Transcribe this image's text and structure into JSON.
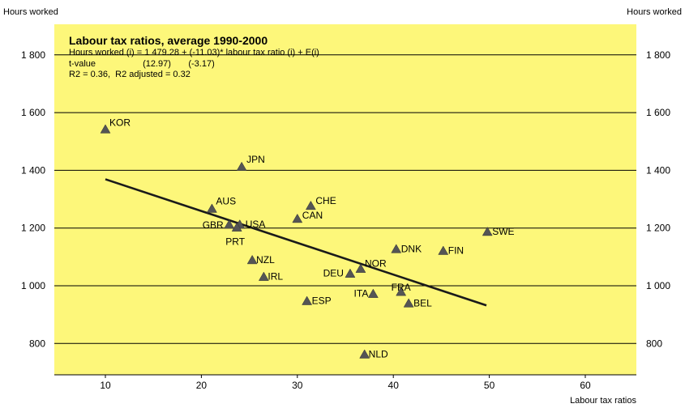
{
  "chart_data": {
    "type": "scatter",
    "title": "Labour tax ratios, average 1990-2000",
    "stats": [
      "Hours worked (i) = 1 479.28 + (-11.03)* labour tax ratio (i) + E(i)",
      "t-value                   (12.97)       (-3.17)",
      "R2 = 0.36,  R2 adjusted = 0.32"
    ],
    "ylabel_left": "Hours worked",
    "ylabel_right": "Hours worked",
    "xlabel": "Labour tax ratios",
    "xlim": [
      4.5,
      65
    ],
    "ylim": [
      700,
      1950
    ],
    "xticks": [
      10,
      20,
      30,
      40,
      50,
      60
    ],
    "yticks": [
      800,
      1000,
      1200,
      1400,
      1600,
      1800
    ],
    "ytick_labels": [
      "800",
      "1 000",
      "1 200",
      "1 400",
      "1 600",
      "1 800"
    ],
    "points": [
      {
        "label": "KOR",
        "x": 10.0,
        "y": 1543
      },
      {
        "label": "JPN",
        "x": 24.2,
        "y": 1413
      },
      {
        "label": "AUS",
        "x": 21.1,
        "y": 1268
      },
      {
        "label": "CHE",
        "x": 31.4,
        "y": 1278
      },
      {
        "label": "CAN",
        "x": 30.0,
        "y": 1233
      },
      {
        "label": "GBR",
        "x": 22.9,
        "y": 1213
      },
      {
        "label": "USA",
        "x": 24.0,
        "y": 1213
      },
      {
        "label": "PRT",
        "x": 23.7,
        "y": 1203
      },
      {
        "label": "DNK",
        "x": 40.3,
        "y": 1128
      },
      {
        "label": "FIN",
        "x": 45.2,
        "y": 1122
      },
      {
        "label": "SWE",
        "x": 49.8,
        "y": 1188
      },
      {
        "label": "NZL",
        "x": 25.3,
        "y": 1090
      },
      {
        "label": "IRL",
        "x": 26.5,
        "y": 1032
      },
      {
        "label": "NOR",
        "x": 36.6,
        "y": 1060
      },
      {
        "label": "DEU",
        "x": 35.5,
        "y": 1043
      },
      {
        "label": "FRA",
        "x": 40.8,
        "y": 980
      },
      {
        "label": "ITA",
        "x": 37.9,
        "y": 973
      },
      {
        "label": "BEL",
        "x": 41.6,
        "y": 940
      },
      {
        "label": "ESP",
        "x": 31.0,
        "y": 948
      },
      {
        "label": "NLD",
        "x": 37.0,
        "y": 763
      }
    ],
    "fit_line": {
      "x": [
        10,
        49.7
      ],
      "y": [
        1369,
        932
      ]
    },
    "colors": {
      "plot_bg": "#fdf77a",
      "marker": "#555555",
      "line": "#1a1a1a"
    },
    "grid": "horizontal"
  }
}
